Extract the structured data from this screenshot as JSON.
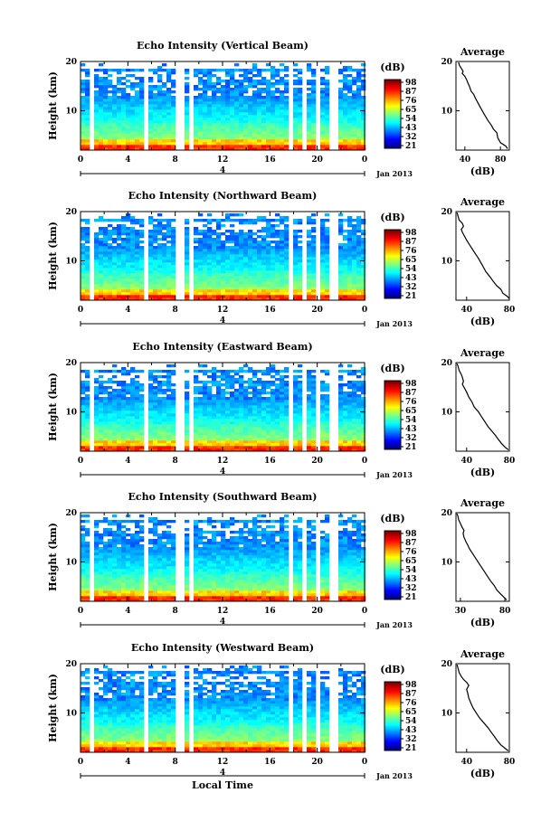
{
  "figure": {
    "x_axis_label": "Local Time",
    "height_label": "Height (km)",
    "colorbar_unit": "(dB)",
    "average_title": "Average",
    "average_xlabel": "(dB)",
    "date_label": "Jan 2013",
    "date_tick": "4"
  },
  "chart_data": [
    {
      "type": "heatmap",
      "title": "Echo Intensity (Vertical Beam)",
      "xlabel": "",
      "ylabel": "Height (km)",
      "x_ticks": [
        "0",
        "4",
        "8",
        "12",
        "16",
        "20",
        "0"
      ],
      "y_ticks": [
        "10",
        "20"
      ],
      "xlim": [
        0,
        24
      ],
      "ylim": [
        2,
        20
      ],
      "colorbar_ticks": [
        "21",
        "32",
        "43",
        "54",
        "65",
        "76",
        "87",
        "98"
      ],
      "average": {
        "title": "Average",
        "xlabel": "(dB)",
        "x_ticks": [
          "40",
          "80"
        ],
        "y_ticks": [
          "10",
          "20"
        ],
        "xlim": [
          30,
          90
        ],
        "ylim": [
          2,
          20
        ],
        "profile": [
          [
            88,
            2.3
          ],
          [
            86,
            2.8
          ],
          [
            80,
            3.5
          ],
          [
            77,
            4.5
          ],
          [
            76,
            5.5
          ],
          [
            72,
            6.3
          ],
          [
            70,
            7
          ],
          [
            66,
            8
          ],
          [
            62,
            9.2
          ],
          [
            58,
            10.5
          ],
          [
            55,
            11.5
          ],
          [
            52,
            12.5
          ],
          [
            50,
            13.3
          ],
          [
            47,
            14
          ],
          [
            45,
            15
          ],
          [
            43,
            15.8
          ],
          [
            42,
            16.3
          ],
          [
            40,
            17
          ],
          [
            37,
            17.6
          ],
          [
            38,
            18
          ],
          [
            36,
            18.6
          ],
          [
            34,
            19.2
          ],
          [
            33,
            19.8
          ]
        ]
      }
    },
    {
      "type": "heatmap",
      "title": "Echo Intensity (Northward Beam)",
      "xlabel": "",
      "ylabel": "Height (km)",
      "x_ticks": [
        "0",
        "4",
        "8",
        "12",
        "16",
        "20",
        "0"
      ],
      "y_ticks": [
        "10",
        "20"
      ],
      "xlim": [
        0,
        24
      ],
      "ylim": [
        2,
        20
      ],
      "colorbar_ticks": [
        "21",
        "32",
        "43",
        "54",
        "65",
        "76",
        "87",
        "98"
      ],
      "average": {
        "title": "Average",
        "xlabel": "(dB)",
        "x_ticks": [
          "40",
          "80"
        ],
        "y_ticks": [
          "10",
          "20"
        ],
        "xlim": [
          30,
          80
        ],
        "ylim": [
          2,
          20
        ],
        "profile": [
          [
            80,
            2.3
          ],
          [
            78,
            2.8
          ],
          [
            74,
            3.4
          ],
          [
            72,
            4.2
          ],
          [
            68,
            5
          ],
          [
            65,
            5.8
          ],
          [
            62,
            6.7
          ],
          [
            58,
            7.8
          ],
          [
            55,
            9
          ],
          [
            51,
            10.5
          ],
          [
            48,
            11.5
          ],
          [
            45,
            12.5
          ],
          [
            42,
            13.5
          ],
          [
            40,
            14.2
          ],
          [
            38,
            15
          ],
          [
            36,
            15.8
          ],
          [
            35,
            16.4
          ],
          [
            37,
            17
          ],
          [
            36,
            17.6
          ],
          [
            33,
            18.3
          ],
          [
            32,
            19
          ],
          [
            31,
            19.8
          ]
        ]
      }
    },
    {
      "type": "heatmap",
      "title": "Echo Intensity (Eastward Beam)",
      "xlabel": "",
      "ylabel": "Height (km)",
      "x_ticks": [
        "0",
        "4",
        "8",
        "12",
        "16",
        "20",
        "0"
      ],
      "y_ticks": [
        "10",
        "20"
      ],
      "xlim": [
        0,
        24
      ],
      "ylim": [
        2,
        20
      ],
      "colorbar_ticks": [
        "21",
        "32",
        "43",
        "54",
        "65",
        "76",
        "87",
        "98"
      ],
      "average": {
        "title": "Average",
        "xlabel": "(dB)",
        "x_ticks": [
          "40",
          "80"
        ],
        "y_ticks": [
          "10",
          "20"
        ],
        "xlim": [
          30,
          80
        ],
        "ylim": [
          2,
          20
        ],
        "profile": [
          [
            79,
            2.3
          ],
          [
            76,
            2.8
          ],
          [
            73,
            3.5
          ],
          [
            70,
            4.3
          ],
          [
            67,
            5.2
          ],
          [
            64,
            6
          ],
          [
            60,
            7
          ],
          [
            57,
            8
          ],
          [
            54,
            9
          ],
          [
            51,
            10
          ],
          [
            47,
            11
          ],
          [
            45,
            12
          ],
          [
            42,
            13
          ],
          [
            40,
            14
          ],
          [
            38,
            14.8
          ],
          [
            36,
            15.6
          ],
          [
            37,
            16.2
          ],
          [
            36,
            17
          ],
          [
            35,
            17.6
          ],
          [
            33,
            18.4
          ],
          [
            32,
            19.2
          ],
          [
            31,
            19.8
          ]
        ]
      }
    },
    {
      "type": "heatmap",
      "title": "Echo Intensity (Southward Beam)",
      "xlabel": "",
      "ylabel": "Height (km)",
      "x_ticks": [
        "0",
        "4",
        "8",
        "12",
        "16",
        "20",
        "0"
      ],
      "y_ticks": [
        "10",
        "20"
      ],
      "xlim": [
        0,
        24
      ],
      "ylim": [
        2,
        20
      ],
      "colorbar_ticks": [
        "21",
        "32",
        "43",
        "54",
        "65",
        "76",
        "87",
        "98"
      ],
      "average": {
        "title": "Average",
        "xlabel": "(dB)",
        "x_ticks": [
          "30",
          "80"
        ],
        "y_ticks": [
          "10",
          "20"
        ],
        "xlim": [
          25,
          85
        ],
        "ylim": [
          2,
          20
        ],
        "profile": [
          [
            82,
            2.3
          ],
          [
            79,
            2.8
          ],
          [
            75,
            3.5
          ],
          [
            71,
            4.3
          ],
          [
            68,
            5.2
          ],
          [
            64,
            6.1
          ],
          [
            60,
            7.2
          ],
          [
            56,
            8.3
          ],
          [
            52,
            9.4
          ],
          [
            48,
            10.5
          ],
          [
            44,
            11.6
          ],
          [
            40,
            12.7
          ],
          [
            38,
            13.5
          ],
          [
            36,
            14.2
          ],
          [
            34,
            15
          ],
          [
            33,
            15.8
          ],
          [
            34,
            16.4
          ],
          [
            32,
            17
          ],
          [
            30,
            17.8
          ],
          [
            28,
            18.6
          ],
          [
            27,
            19.4
          ],
          [
            26,
            19.8
          ]
        ]
      }
    },
    {
      "type": "heatmap",
      "title": "Echo Intensity (Westward Beam)",
      "xlabel": "Local Time",
      "ylabel": "Height (km)",
      "x_ticks": [
        "0",
        "4",
        "8",
        "12",
        "16",
        "20",
        "0"
      ],
      "y_ticks": [
        "10",
        "20"
      ],
      "xlim": [
        0,
        24
      ],
      "ylim": [
        2,
        20
      ],
      "colorbar_ticks": [
        "21",
        "32",
        "43",
        "54",
        "65",
        "76",
        "87",
        "98"
      ],
      "average": {
        "title": "Average",
        "xlabel": "(dB)",
        "x_ticks": [
          "40",
          "80"
        ],
        "y_ticks": [
          "10",
          "20"
        ],
        "xlim": [
          30,
          80
        ],
        "ylim": [
          2,
          20
        ],
        "profile": [
          [
            79,
            2.3
          ],
          [
            76,
            2.8
          ],
          [
            72,
            3.5
          ],
          [
            69,
            4.3
          ],
          [
            66,
            5.2
          ],
          [
            63,
            6.1
          ],
          [
            60,
            7
          ],
          [
            56,
            8
          ],
          [
            52,
            9
          ],
          [
            49,
            10
          ],
          [
            46,
            11
          ],
          [
            44,
            12
          ],
          [
            42,
            13
          ],
          [
            41,
            14
          ],
          [
            40,
            14.8
          ],
          [
            42,
            15.6
          ],
          [
            40,
            16.2
          ],
          [
            37,
            16.8
          ],
          [
            35,
            17.4
          ],
          [
            33,
            18.2
          ],
          [
            32,
            19
          ],
          [
            31,
            19.8
          ]
        ]
      }
    }
  ]
}
